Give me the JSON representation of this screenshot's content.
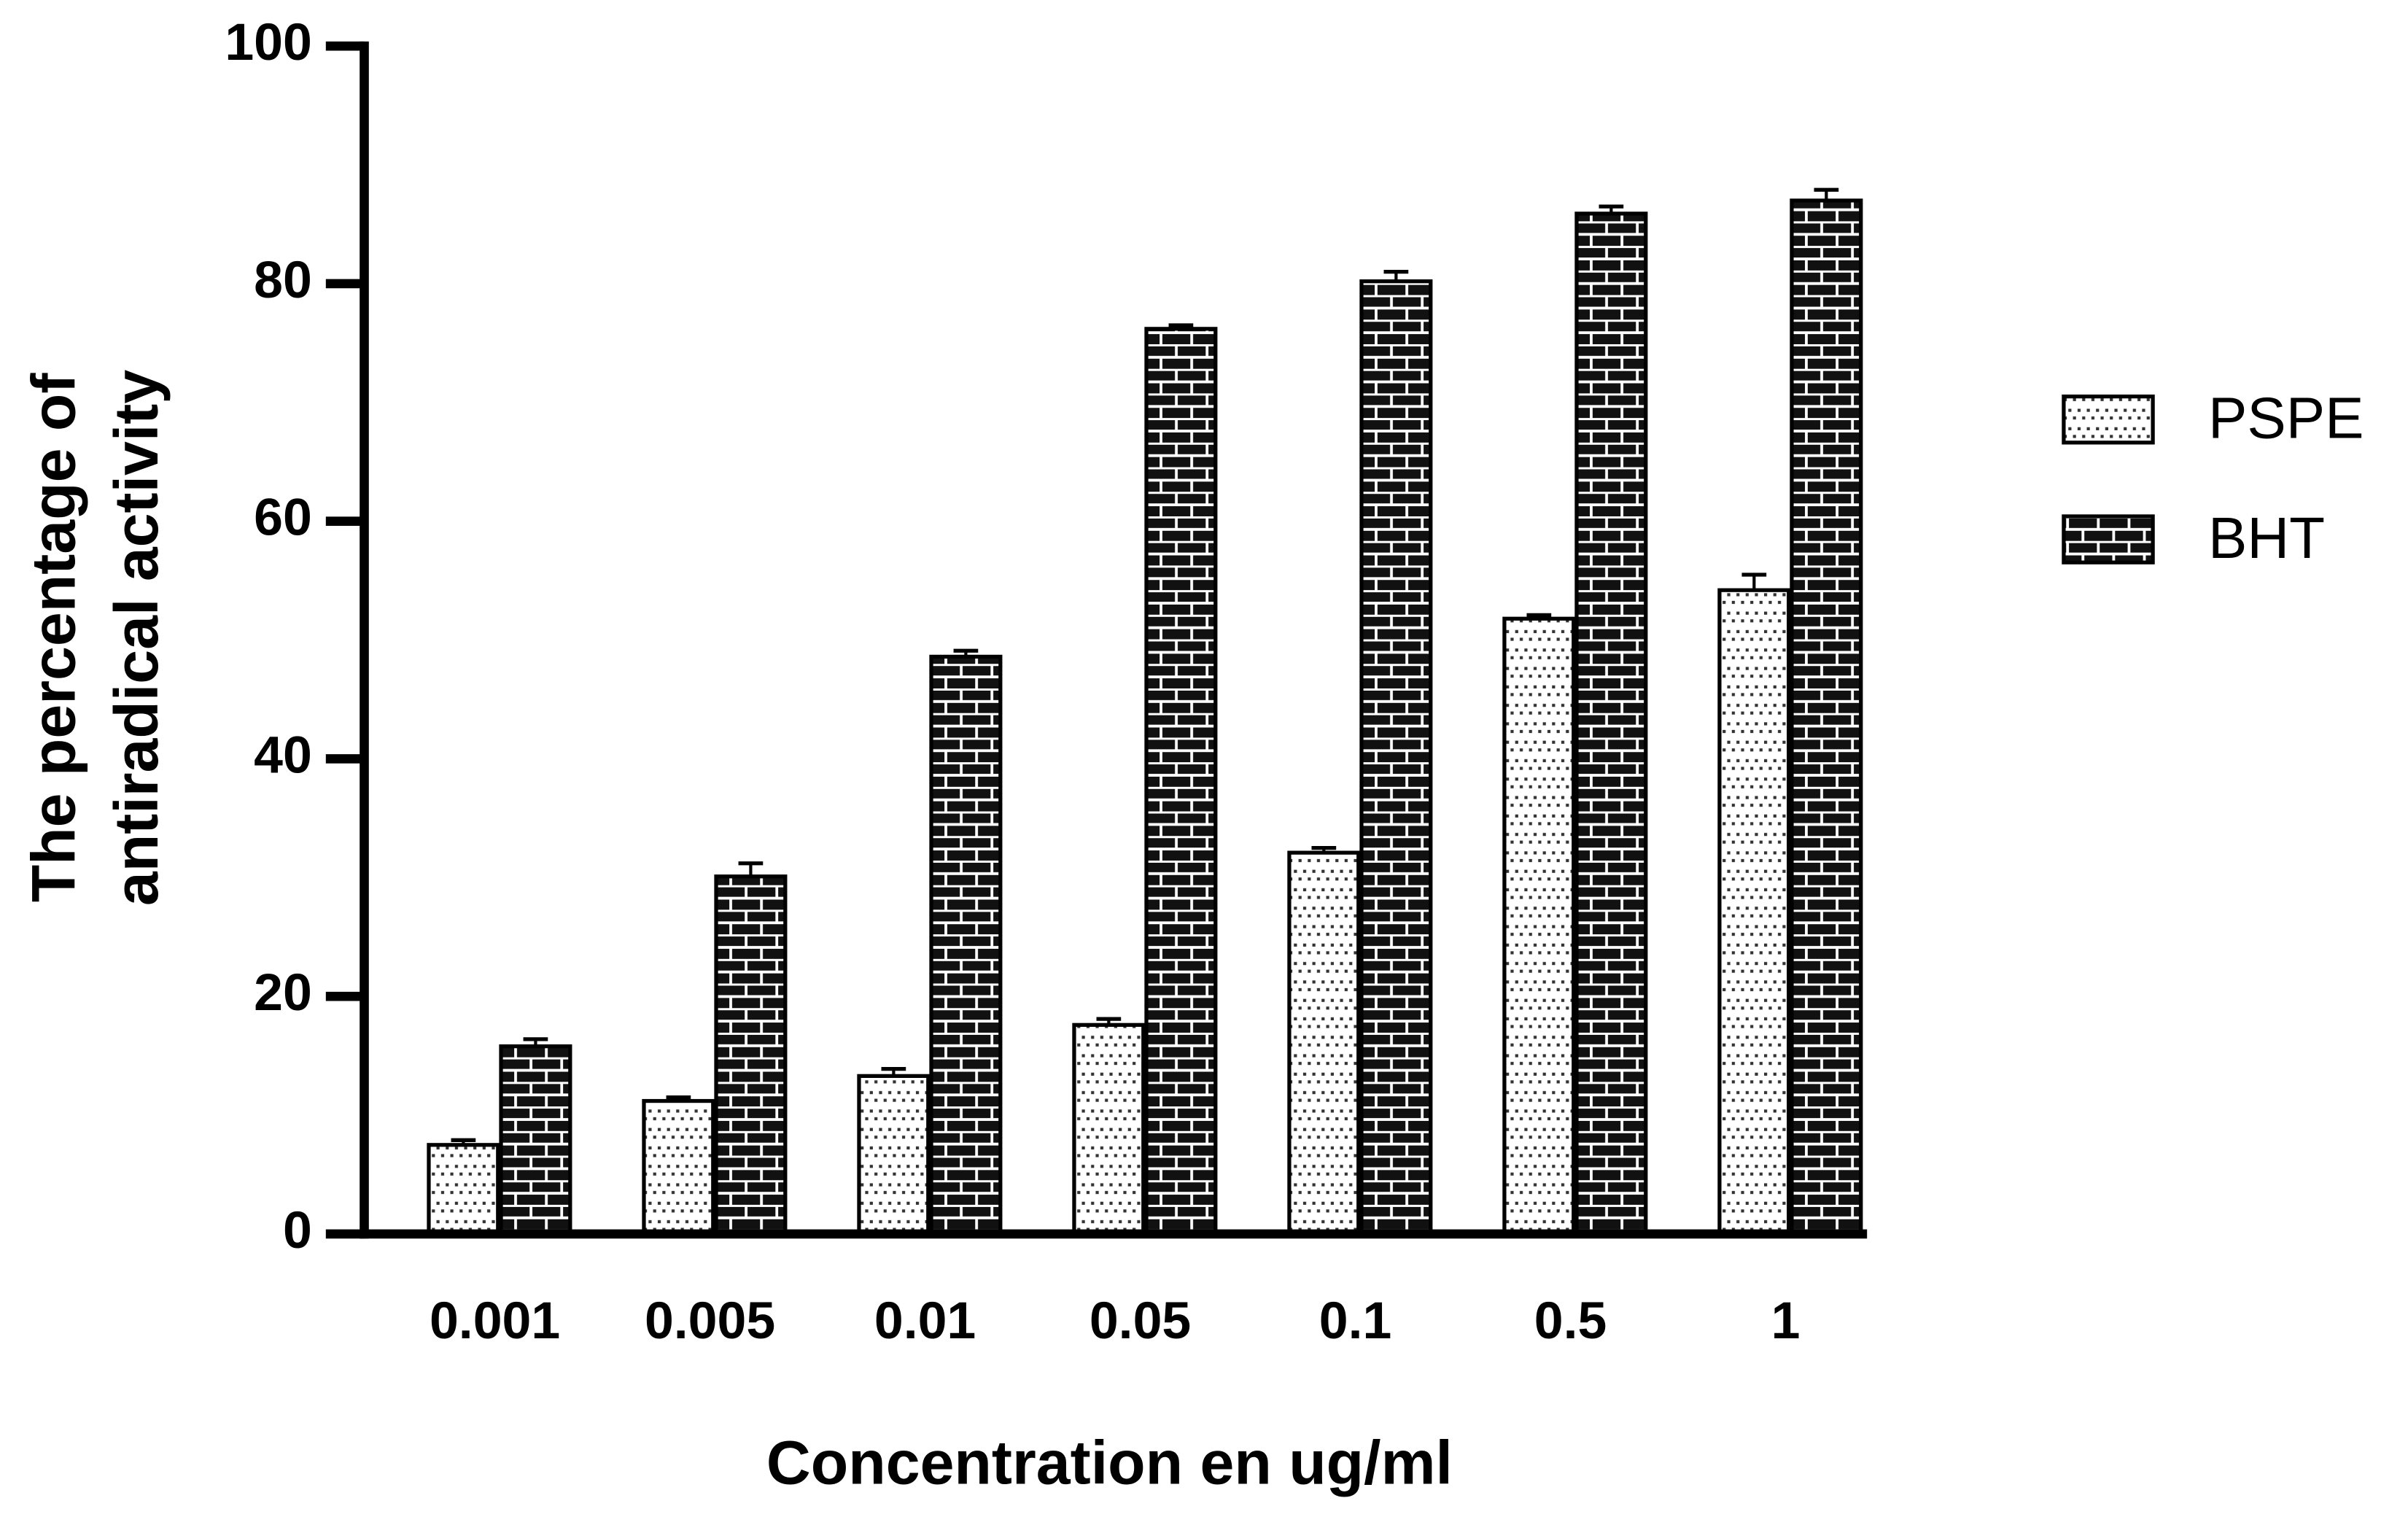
{
  "chart_data": {
    "type": "bar",
    "xlabel": "Concentration en ug/ml",
    "ylabel": [
      "The percentage of",
      "antiradical activity"
    ],
    "categories": [
      "0.001",
      "0.005",
      "0.01",
      "0.05",
      "0.1",
      "0.5",
      "1"
    ],
    "series": [
      {
        "name": "PSPE",
        "color": "#ffffff",
        "pattern": "dots",
        "values": [
          7.5,
          11.2,
          13.3,
          17.6,
          32.1,
          51.8,
          54.2
        ],
        "errors": [
          0.4,
          0.3,
          0.6,
          0.5,
          0.4,
          0.3,
          1.3
        ]
      },
      {
        "name": "BHT",
        "color": "#111111",
        "pattern": "bricks",
        "values": [
          15.8,
          30.1,
          48.6,
          76.2,
          80.2,
          85.9,
          87.0
        ],
        "errors": [
          0.6,
          1.1,
          0.5,
          0.3,
          0.8,
          0.6,
          0.9
        ]
      }
    ],
    "ylim": [
      0,
      100
    ],
    "yticks": [
      0,
      20,
      40,
      60,
      80,
      100
    ],
    "grid": false,
    "legend": "right"
  }
}
